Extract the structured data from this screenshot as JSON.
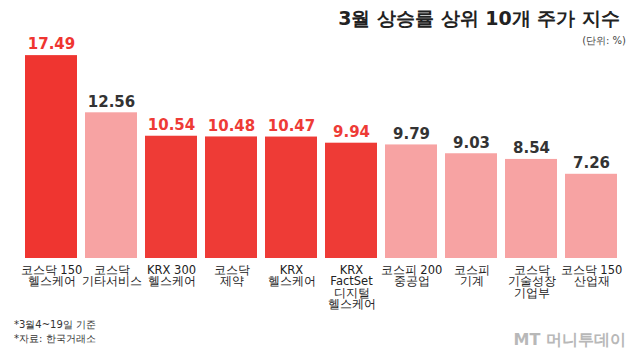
{
  "chart_data": {
    "type": "bar",
    "title": "3월 상승률 상위 10개 주가 지수",
    "subtitle": "(단위: %)",
    "categories": [
      "코스닥 150\n헬스케어",
      "코스닥\n기타서비스",
      "KRX 300\n헬스케어",
      "코스닥\n제약",
      "KRX\n헬스케어",
      "KRX\nFactSet\n디지털\n헬스케어",
      "코스피 200\n중공업",
      "코스피\n기계",
      "코스닥\n기술성장\n기업부",
      "코스닥 150\n산업재"
    ],
    "values": [
      17.49,
      12.56,
      10.54,
      10.48,
      10.47,
      9.94,
      9.79,
      9.03,
      8.54,
      7.26
    ],
    "colors": [
      "#ef3530",
      "#f7a3a3",
      "#ee3b36",
      "#ee3b36",
      "#ee3b36",
      "#ee3b36",
      "#f7a3a3",
      "#f7a3a3",
      "#f7a3a3",
      "#f7a3a3"
    ],
    "ylim": [
      0,
      20
    ],
    "data_labels": true,
    "tick_labels": "x",
    "grid": false,
    "annotations": [
      "*3월4~19일 기준",
      "*자료: 한국거래소",
      "MT 머니투데이"
    ]
  }
}
